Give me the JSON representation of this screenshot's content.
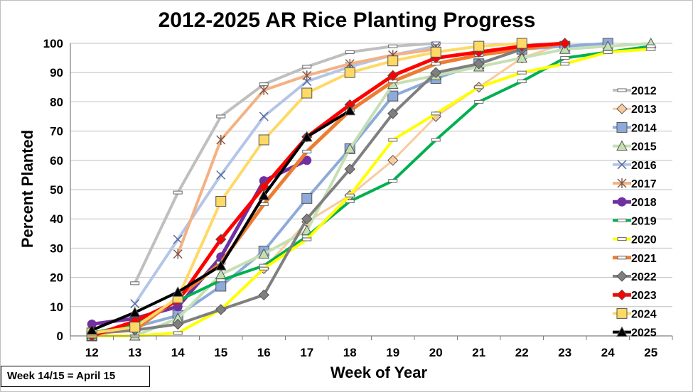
{
  "chart_data": {
    "type": "line",
    "title": "2012-2025 AR Rice Planting Progress",
    "xlabel": "Week of Year",
    "ylabel": "Percent Planted",
    "x": [
      12,
      13,
      14,
      15,
      16,
      17,
      18,
      19,
      20,
      21,
      22,
      23,
      24,
      25
    ],
    "xlim": [
      11.5,
      25.5
    ],
    "ylim": [
      0,
      100
    ],
    "yticks": [
      0,
      10,
      20,
      30,
      40,
      50,
      60,
      70,
      80,
      90,
      100
    ],
    "grid": "horizontal",
    "legend_position": "right",
    "series": [
      {
        "name": "2012",
        "color": "#bfbfbf",
        "width": 4,
        "marker": "dash",
        "points": [
          [
            13,
            18
          ],
          [
            14,
            49
          ],
          [
            15,
            75
          ],
          [
            16,
            86
          ],
          [
            17,
            92
          ],
          [
            18,
            97
          ],
          [
            19,
            99
          ],
          [
            20,
            100
          ]
        ]
      },
      {
        "name": "2013",
        "color": "#f9cb9c",
        "width": 3,
        "marker": "diamond",
        "points": [
          [
            12,
            1
          ],
          [
            13,
            2
          ],
          [
            14,
            4
          ],
          [
            15,
            9
          ],
          [
            16,
            23
          ],
          [
            17,
            39
          ],
          [
            18,
            48
          ],
          [
            19,
            60
          ],
          [
            20,
            75
          ],
          [
            21,
            85
          ],
          [
            22,
            95
          ],
          [
            23,
            100
          ]
        ]
      },
      {
        "name": "2014",
        "color": "#8eaadb",
        "width": 4,
        "marker": "square",
        "points": [
          [
            12,
            0
          ],
          [
            13,
            3
          ],
          [
            14,
            7
          ],
          [
            15,
            17
          ],
          [
            16,
            29
          ],
          [
            17,
            47
          ],
          [
            18,
            64
          ],
          [
            19,
            82
          ],
          [
            20,
            88
          ],
          [
            21,
            93
          ],
          [
            22,
            98
          ],
          [
            23,
            99
          ],
          [
            24,
            100
          ]
        ]
      },
      {
        "name": "2015",
        "color": "#c5e0b3",
        "width": 4,
        "marker": "triangle",
        "points": [
          [
            12,
            0
          ],
          [
            13,
            0
          ],
          [
            14,
            6
          ],
          [
            15,
            21
          ],
          [
            16,
            28
          ],
          [
            17,
            36
          ],
          [
            18,
            64
          ],
          [
            19,
            86
          ],
          [
            20,
            89
          ],
          [
            21,
            92
          ],
          [
            22,
            95
          ],
          [
            23,
            98
          ],
          [
            24,
            99
          ],
          [
            25,
            100
          ]
        ]
      },
      {
        "name": "2016",
        "color": "#b4c6e7",
        "width": 4,
        "marker": "x",
        "points": [
          [
            13,
            11
          ],
          [
            14,
            33
          ],
          [
            15,
            55
          ],
          [
            16,
            75
          ],
          [
            17,
            87
          ],
          [
            18,
            92
          ],
          [
            19,
            96
          ],
          [
            20,
            99
          ]
        ]
      },
      {
        "name": "2017",
        "color": "#f4b183",
        "width": 4,
        "marker": "star",
        "points": [
          [
            14,
            28
          ],
          [
            15,
            67
          ],
          [
            16,
            84
          ],
          [
            17,
            89
          ],
          [
            18,
            93
          ],
          [
            19,
            96
          ],
          [
            20,
            98
          ]
        ]
      },
      {
        "name": "2018",
        "color": "#7030a0",
        "width": 5,
        "marker": "circle",
        "points": [
          [
            12,
            4
          ],
          [
            13,
            6
          ],
          [
            14,
            10
          ],
          [
            15,
            27
          ],
          [
            16,
            53
          ],
          [
            17,
            60
          ]
        ]
      },
      {
        "name": "2019",
        "color": "#00b050",
        "width": 4,
        "marker": "dash",
        "points": [
          [
            12,
            1
          ],
          [
            13,
            4
          ],
          [
            14,
            12
          ],
          [
            15,
            19
          ],
          [
            16,
            24
          ],
          [
            17,
            34
          ],
          [
            18,
            46
          ],
          [
            19,
            53
          ],
          [
            20,
            67
          ],
          [
            21,
            80
          ],
          [
            22,
            87
          ],
          [
            23,
            95
          ],
          [
            24,
            97
          ],
          [
            25,
            99
          ]
        ]
      },
      {
        "name": "2020",
        "color": "#ffff00",
        "width": 4,
        "marker": "dash",
        "points": [
          [
            12,
            0
          ],
          [
            13,
            0
          ],
          [
            14,
            1
          ],
          [
            15,
            9
          ],
          [
            16,
            23
          ],
          [
            17,
            33
          ],
          [
            18,
            48
          ],
          [
            19,
            67
          ],
          [
            20,
            76
          ],
          [
            21,
            85
          ],
          [
            22,
            90
          ],
          [
            23,
            93
          ],
          [
            24,
            97
          ],
          [
            25,
            98
          ]
        ]
      },
      {
        "name": "2021",
        "color": "#ed7d31",
        "width": 5,
        "marker": "dash",
        "points": [
          [
            12,
            1
          ],
          [
            13,
            2
          ],
          [
            14,
            13
          ],
          [
            15,
            25
          ],
          [
            16,
            45
          ],
          [
            17,
            63
          ],
          [
            18,
            77
          ],
          [
            19,
            87
          ],
          [
            20,
            93
          ],
          [
            21,
            96
          ],
          [
            22,
            98
          ],
          [
            23,
            100
          ]
        ]
      },
      {
        "name": "2022",
        "color": "#7f7f7f",
        "width": 4,
        "marker": "diamond",
        "points": [
          [
            12,
            1
          ],
          [
            13,
            2
          ],
          [
            14,
            4
          ],
          [
            15,
            9
          ],
          [
            16,
            14
          ],
          [
            17,
            40
          ],
          [
            18,
            57
          ],
          [
            19,
            76
          ],
          [
            20,
            90
          ],
          [
            21,
            93
          ],
          [
            22,
            98
          ]
        ]
      },
      {
        "name": "2023",
        "color": "#ff0000",
        "width": 5,
        "marker": "diamond",
        "points": [
          [
            12,
            0
          ],
          [
            13,
            5
          ],
          [
            14,
            12
          ],
          [
            15,
            33
          ],
          [
            16,
            51
          ],
          [
            17,
            68
          ],
          [
            18,
            79
          ],
          [
            19,
            89
          ],
          [
            20,
            95
          ],
          [
            21,
            97
          ],
          [
            22,
            99
          ],
          [
            23,
            100
          ]
        ]
      },
      {
        "name": "2024",
        "color": "#ffd966",
        "width": 4,
        "marker": "square",
        "points": [
          [
            12,
            1
          ],
          [
            13,
            3
          ],
          [
            14,
            13
          ],
          [
            15,
            46
          ],
          [
            16,
            67
          ],
          [
            17,
            83
          ],
          [
            18,
            90
          ],
          [
            19,
            94
          ],
          [
            20,
            97
          ],
          [
            21,
            99
          ],
          [
            22,
            100
          ]
        ]
      },
      {
        "name": "2025",
        "color": "#000000",
        "width": 4,
        "marker": "triangle",
        "points": [
          [
            12,
            2
          ],
          [
            13,
            8
          ],
          [
            14,
            15
          ],
          [
            15,
            24
          ],
          [
            16,
            48
          ],
          [
            17,
            68
          ],
          [
            18,
            77
          ]
        ]
      }
    ]
  },
  "note": "Week 14/15 = April 15"
}
